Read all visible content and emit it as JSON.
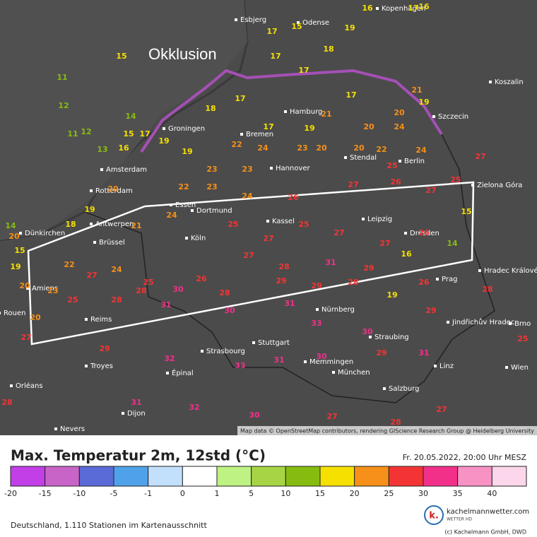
{
  "map": {
    "annotation": "Okklusion",
    "attribution": "Map data © OpenStreetMap contributors, rendering GIScience Research Group @ Heidelberg University",
    "cities": [
      "Kopenhagen",
      "Esbjerg",
      "Odense",
      "Koszalin",
      "Szczecin",
      "Groningen",
      "Hamburg",
      "Bremen",
      "Amsterdam",
      "Hannover",
      "Stendal",
      "Berlin",
      "Rotterdam",
      "Zielona Góra",
      "Dortmund",
      "Antwerpen",
      "Essen",
      "Kassel",
      "Leipzig",
      "Dresden",
      "Köln",
      "Brüssel",
      "Dünkirchen",
      "Hradec Králové",
      "Prag",
      "Amiens",
      "Rouen",
      "Reims",
      "Nürnberg",
      "Jindřichův Hradec",
      "Brno",
      "Stuttgart",
      "Strasbourg",
      "Troyes",
      "Épinal",
      "Linz",
      "Orléans",
      "München",
      "Salzburg",
      "Dijon",
      "Nevers",
      "Memmingen",
      "Straubing",
      "Wien"
    ],
    "stations": [
      16,
      17,
      16,
      15,
      17,
      19,
      18,
      17,
      17,
      15,
      11,
      12,
      11,
      12,
      13,
      14,
      15,
      16,
      17,
      19,
      19,
      17,
      18,
      17,
      19,
      21,
      17,
      20,
      20,
      19,
      21,
      22,
      23,
      23,
      24,
      23,
      20,
      20,
      22,
      24,
      24,
      25,
      27,
      25,
      14,
      18,
      19,
      20,
      22,
      23,
      24,
      26,
      27,
      26,
      27,
      15,
      20,
      21,
      24,
      25,
      27,
      25,
      27,
      27,
      26,
      14,
      15,
      19,
      22,
      24,
      25,
      26,
      27,
      28,
      31,
      29,
      16,
      20,
      23,
      27,
      28,
      30,
      28,
      29,
      29,
      28,
      19,
      20,
      25,
      28,
      31,
      30,
      31,
      33,
      30,
      29,
      28,
      26,
      27,
      29,
      32,
      33,
      31,
      30,
      29,
      31,
      25,
      28,
      31,
      32,
      30,
      27,
      28,
      27
    ]
  },
  "header": {
    "title": "Max. Temperatur 2m, 12std (°C)",
    "datetime": "Fr. 20.05.2022, 20:00 Uhr MESZ"
  },
  "legend": {
    "thresholds": [
      -20,
      -15,
      -10,
      -5,
      -1,
      0,
      1,
      5,
      10,
      15,
      20,
      25,
      30,
      35,
      40
    ],
    "colors": [
      "#c23fe8",
      "#c864c8",
      "#5a6ad6",
      "#4fa2ea",
      "#c2e0fc",
      "#ffffff",
      "#bef282",
      "#a6d444",
      "#86bc10",
      "#f6e000",
      "#f69018",
      "#f43434",
      "#f2308a",
      "#f892c4",
      "#fcd6ea"
    ]
  },
  "footer": {
    "stations": "Deutschland, 1.110 Stationen im Kartenausschnitt",
    "logo": "k.",
    "brand": "kachelmannwetter.com",
    "brand_sub": "WETTER HD",
    "copyright": "(c) Kachelmann GmbH, DWD"
  }
}
